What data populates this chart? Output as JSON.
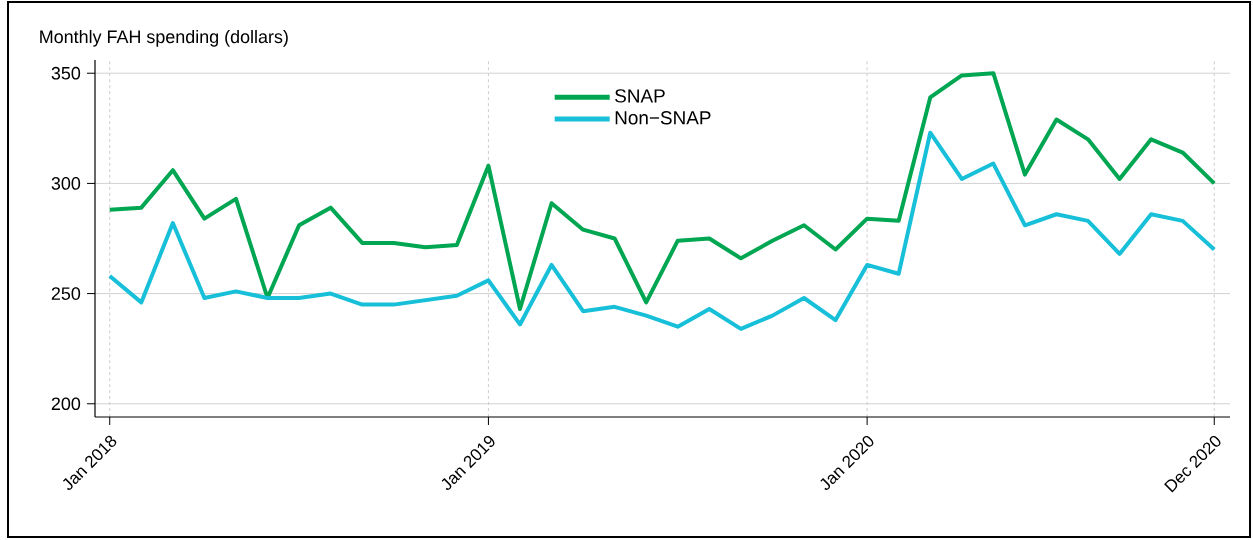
{
  "chart_data": {
    "type": "line",
    "ylabel": "Monthly FAH spending (dollars)",
    "x": [
      "2018-01",
      "2018-02",
      "2018-03",
      "2018-04",
      "2018-05",
      "2018-06",
      "2018-07",
      "2018-08",
      "2018-09",
      "2018-10",
      "2018-11",
      "2018-12",
      "2019-01",
      "2019-02",
      "2019-03",
      "2019-04",
      "2019-05",
      "2019-06",
      "2019-07",
      "2019-08",
      "2019-09",
      "2019-10",
      "2019-11",
      "2019-12",
      "2020-01",
      "2020-02",
      "2020-03",
      "2020-04",
      "2020-05",
      "2020-06",
      "2020-07",
      "2020-08",
      "2020-09",
      "2020-10",
      "2020-11",
      "2020-12"
    ],
    "series": [
      {
        "name": "SNAP",
        "color": "#00a651",
        "values": [
          288,
          289,
          306,
          284,
          293,
          248,
          281,
          289,
          273,
          273,
          271,
          272,
          308,
          243,
          291,
          279,
          275,
          246,
          274,
          275,
          266,
          274,
          281,
          270,
          284,
          283,
          339,
          349,
          350,
          304,
          329,
          320,
          302,
          320,
          314,
          300
        ]
      },
      {
        "name": "Non−SNAP",
        "color": "#17c0d8",
        "values": [
          258,
          246,
          282,
          248,
          251,
          248,
          248,
          250,
          245,
          245,
          247,
          249,
          256,
          236,
          263,
          242,
          244,
          240,
          235,
          243,
          234,
          240,
          248,
          238,
          263,
          259,
          323,
          302,
          309,
          281,
          286,
          283,
          268,
          286,
          283,
          270
        ]
      }
    ],
    "xlim": [
      "2017-12-17",
      "2020-12-16"
    ],
    "xticks": [
      {
        "value": "2018-01",
        "label": "Jan 2018"
      },
      {
        "value": "2019-01",
        "label": "Jan 2019"
      },
      {
        "value": "2020-01",
        "label": "Jan 2020"
      },
      {
        "value": "2020-12",
        "label": "Dec 2020"
      }
    ],
    "ylim": [
      194,
      356
    ],
    "yticks": [
      200,
      250,
      300,
      350
    ],
    "grid": true,
    "legend": "top",
    "marker": "none",
    "line_style": "solid"
  }
}
